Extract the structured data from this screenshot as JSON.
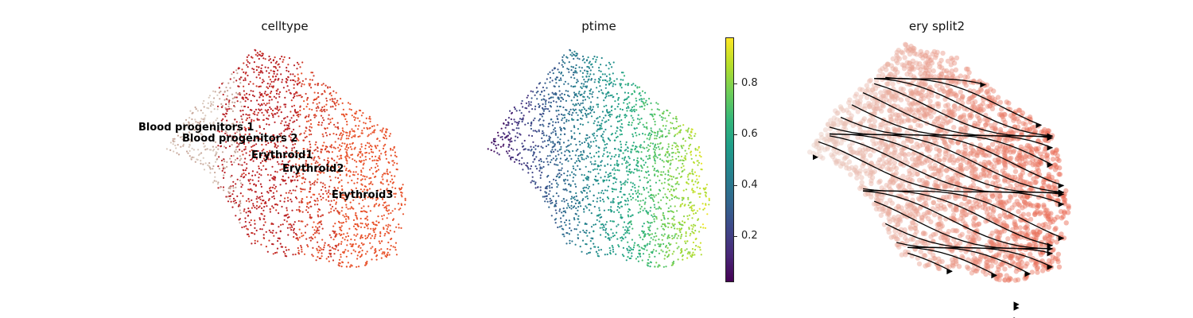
{
  "figure": {
    "panels": [
      {
        "title": "celltype"
      },
      {
        "title": "ptime"
      },
      {
        "title": "ery split2"
      }
    ]
  },
  "chart_data": [
    {
      "type": "scatter",
      "title": "celltype",
      "legend": "on-data",
      "categories": [
        "Blood progenitors 1",
        "Blood progenitors 2",
        "Erythroid1",
        "Erythroid2",
        "Erythroid3"
      ],
      "colors": [
        "#d9c9bd",
        "#c7a79a",
        "#b81f24",
        "#cf3a2a",
        "#e8532c"
      ]
    },
    {
      "type": "scatter",
      "title": "ptime",
      "colormap": "viridis",
      "colorbar": {
        "range": [
          0.02,
          0.98
        ],
        "ticks": [
          0.2,
          0.4,
          0.6,
          0.8
        ]
      }
    },
    {
      "type": "scatter",
      "title": "ery split2",
      "overlay": "streamlines",
      "stream_color": "#000000"
    }
  ]
}
